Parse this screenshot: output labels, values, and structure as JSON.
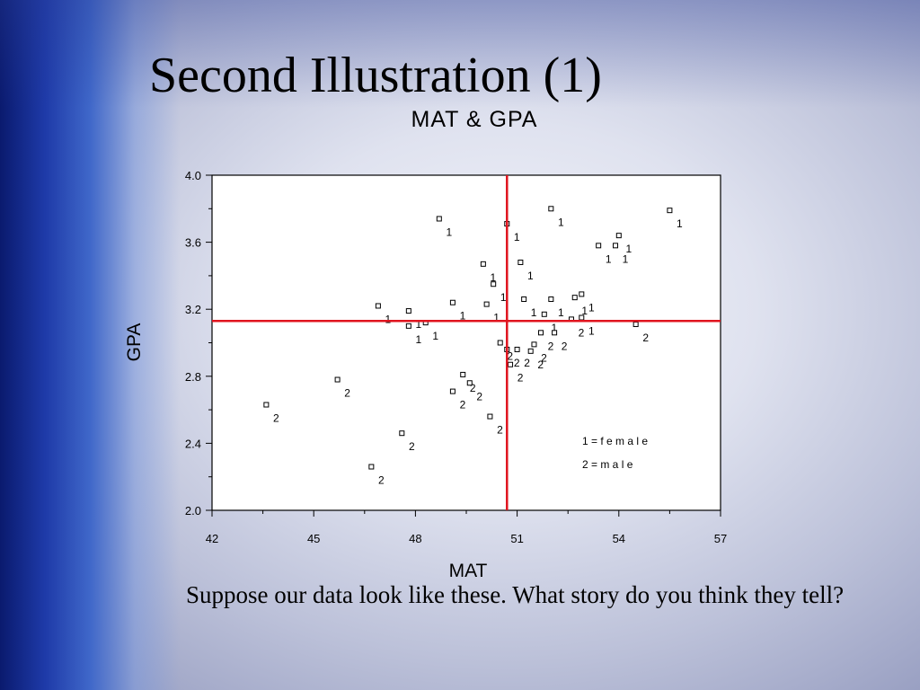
{
  "slide": {
    "title": "Second Illustration (1)",
    "caption": "Suppose our data look like these.  What story do you think they tell?"
  },
  "colors": {
    "reference_lines": "#e0141e",
    "axis": "#000000",
    "plot_background": "#ffffff"
  },
  "chart_data": {
    "type": "scatter",
    "title": "MAT & GPA",
    "xlabel": "MAT",
    "ylabel": "GPA",
    "xlim": [
      42,
      57
    ],
    "ylim": [
      2.0,
      4.0
    ],
    "x_ticks": [
      "42",
      "45",
      "48",
      "51",
      "54",
      "57"
    ],
    "y_ticks": [
      "2.0",
      "2.4",
      "2.8",
      "3.2",
      "3.6",
      "4.0"
    ],
    "reference_lines": {
      "x": 50.7,
      "y": 3.13
    },
    "legend": [
      "1 = f e m a l e",
      "2 = m a l e"
    ],
    "legend_position": "bottom-right",
    "marker_labels": {
      "female": "1",
      "male": "2"
    },
    "series": [
      {
        "label": "1",
        "points": [
          [
            48.7,
            3.74
          ],
          [
            50.7,
            3.71
          ],
          [
            52.0,
            3.8
          ],
          [
            55.5,
            3.79
          ],
          [
            53.4,
            3.58
          ],
          [
            53.9,
            3.58
          ],
          [
            54.0,
            3.64
          ],
          [
            51.1,
            3.48
          ],
          [
            50.0,
            3.47
          ],
          [
            50.3,
            3.35
          ],
          [
            51.2,
            3.26
          ],
          [
            50.1,
            3.23
          ],
          [
            49.1,
            3.24
          ],
          [
            46.9,
            3.22
          ],
          [
            47.8,
            3.19
          ],
          [
            47.8,
            3.1
          ],
          [
            48.3,
            3.12
          ],
          [
            52.0,
            3.26
          ],
          [
            52.7,
            3.27
          ],
          [
            52.9,
            3.29
          ],
          [
            52.9,
            3.15
          ],
          [
            51.8,
            3.17
          ]
        ]
      },
      {
        "label": "2",
        "points": [
          [
            43.6,
            2.63
          ],
          [
            45.7,
            2.78
          ],
          [
            46.7,
            2.26
          ],
          [
            47.6,
            2.46
          ],
          [
            49.4,
            2.81
          ],
          [
            49.6,
            2.76
          ],
          [
            49.1,
            2.71
          ],
          [
            50.2,
            2.56
          ],
          [
            50.5,
            3.0
          ],
          [
            50.7,
            2.96
          ],
          [
            51.0,
            2.96
          ],
          [
            50.8,
            2.87
          ],
          [
            51.4,
            2.95
          ],
          [
            51.5,
            2.99
          ],
          [
            51.7,
            3.06
          ],
          [
            52.1,
            3.06
          ],
          [
            52.6,
            3.14
          ],
          [
            54.5,
            3.11
          ]
        ]
      }
    ]
  }
}
